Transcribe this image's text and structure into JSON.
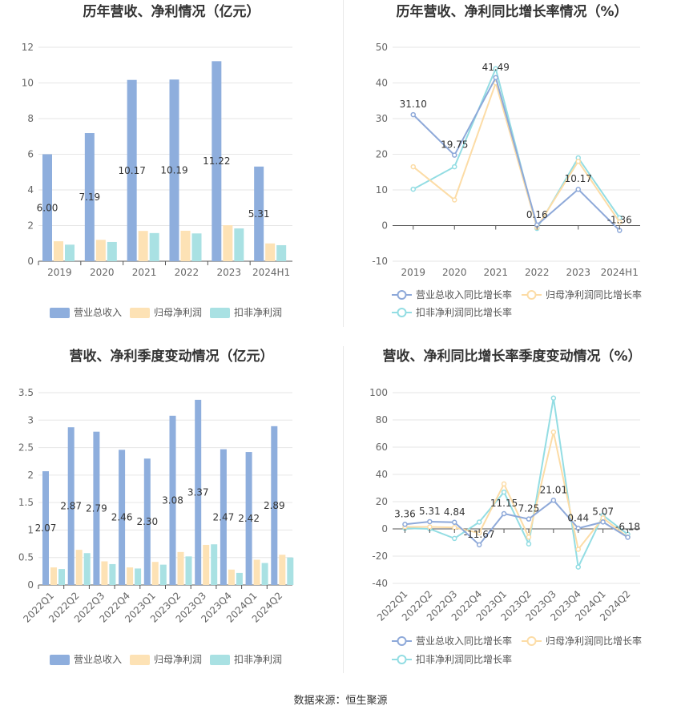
{
  "colors": {
    "revenue": "#8eaedd",
    "net_profit": "#fde2b5",
    "deducted_profit": "#a9e1e3",
    "revenue_line": "#8ea9d9",
    "net_line": "#fcdca6",
    "deducted_line": "#93dde3",
    "axis_text": "#666666",
    "grid": "#e6e6e6",
    "title": "#333333"
  },
  "chart_data": [
    {
      "id": "annual_amounts",
      "type": "bar",
      "title": "历年营收、净利情况（亿元）",
      "categories": [
        "2019",
        "2020",
        "2021",
        "2022",
        "2023",
        "2024H1"
      ],
      "ylim": [
        0,
        12
      ],
      "yticks": [
        "0",
        "2",
        "4",
        "6",
        "8",
        "10",
        "12"
      ],
      "grid": true,
      "legend": "bottom",
      "series": [
        {
          "name": "营业总收入",
          "values": [
            6.0,
            7.19,
            10.17,
            10.19,
            11.22,
            5.31
          ],
          "labels": [
            "6.00",
            "7.19",
            "10.17",
            "10.19",
            "11.22",
            "5.31"
          ]
        },
        {
          "name": "归母净利润",
          "values": [
            1.12,
            1.2,
            1.7,
            1.71,
            2.02,
            1.0
          ]
        },
        {
          "name": "扣非净利润",
          "values": [
            0.93,
            1.08,
            1.58,
            1.56,
            1.84,
            0.9
          ]
        }
      ]
    },
    {
      "id": "annual_growth",
      "type": "line",
      "title": "历年营收、净利同比增长率情况（%）",
      "categories": [
        "2019",
        "2020",
        "2021",
        "2022",
        "2023",
        "2024H1"
      ],
      "ylim": [
        -10,
        50
      ],
      "yticks": [
        "-10",
        "0",
        "10",
        "20",
        "30",
        "40",
        "50"
      ],
      "grid": true,
      "legend": "bottom",
      "series": [
        {
          "name": "营业总收入同比增长率",
          "values": [
            31.1,
            19.75,
            41.49,
            0.16,
            10.17,
            -1.36
          ],
          "labels": [
            "31.10",
            "19.75",
            "41.49",
            "0.16",
            "10.17",
            "-1.36"
          ]
        },
        {
          "name": "归母净利润同比增长率",
          "values": [
            16.5,
            7.2,
            40.0,
            -0.5,
            18.0,
            1.0
          ]
        },
        {
          "name": "扣非净利润同比增长率",
          "values": [
            10.2,
            16.5,
            44.0,
            -0.8,
            19.0,
            2.2
          ]
        }
      ]
    },
    {
      "id": "quarterly_amounts",
      "type": "bar",
      "title": "营收、净利季度变动情况（亿元）",
      "categories": [
        "2022Q1",
        "2022Q2",
        "2022Q3",
        "2022Q4",
        "2023Q1",
        "2023Q2",
        "2023Q3",
        "2023Q4",
        "2024Q1",
        "2024Q2"
      ],
      "ylim": [
        0,
        3.5
      ],
      "yticks": [
        "0",
        "0.5",
        "1",
        "1.5",
        "2",
        "2.5",
        "3",
        "3.5"
      ],
      "grid": true,
      "legend": "bottom",
      "series": [
        {
          "name": "营业总收入",
          "values": [
            2.07,
            2.87,
            2.79,
            2.46,
            2.3,
            3.08,
            3.37,
            2.47,
            2.42,
            2.89
          ],
          "labels": [
            "2.07",
            "2.87",
            "2.79",
            "2.46",
            "2.30",
            "3.08",
            "3.37",
            "2.47",
            "2.42",
            "2.89"
          ]
        },
        {
          "name": "归母净利润",
          "values": [
            0.32,
            0.64,
            0.43,
            0.32,
            0.42,
            0.6,
            0.73,
            0.28,
            0.46,
            0.55
          ]
        },
        {
          "name": "扣非净利润",
          "values": [
            0.29,
            0.58,
            0.38,
            0.3,
            0.37,
            0.52,
            0.74,
            0.22,
            0.4,
            0.5
          ]
        }
      ]
    },
    {
      "id": "quarterly_growth",
      "type": "line",
      "title": "营收、净利同比增长率季度变动情况（%）",
      "categories": [
        "2022Q1",
        "2022Q2",
        "2022Q3",
        "2022Q4",
        "2023Q1",
        "2023Q2",
        "2023Q3",
        "2023Q4",
        "2024Q1",
        "2024Q2"
      ],
      "ylim": [
        -40,
        100
      ],
      "yticks": [
        "-40",
        "-20",
        "0",
        "20",
        "40",
        "60",
        "80",
        "100"
      ],
      "grid": true,
      "legend": "bottom",
      "series": [
        {
          "name": "营业总收入同比增长率",
          "values": [
            3.36,
            5.31,
            4.84,
            -11.67,
            11.15,
            7.25,
            21.01,
            0.44,
            5.07,
            -6.18
          ],
          "labels": [
            "3.36",
            "5.31",
            "4.84",
            "-11.67",
            "11.15",
            "7.25",
            "21.01",
            "0.44",
            "5.07",
            "-6.18"
          ]
        },
        {
          "name": "归母净利润同比增长率",
          "values": [
            1.5,
            1.5,
            1.0,
            -3.0,
            33.0,
            -6.0,
            71.0,
            -15.0,
            8.0,
            -6.0
          ]
        },
        {
          "name": "扣非净利润同比增长率",
          "values": [
            0.5,
            0.0,
            -7.0,
            5.0,
            27.0,
            -11.0,
            96.0,
            -28.0,
            10.0,
            -4.0
          ]
        }
      ]
    }
  ],
  "footer": {
    "source": "数据来源：恒生聚源"
  }
}
